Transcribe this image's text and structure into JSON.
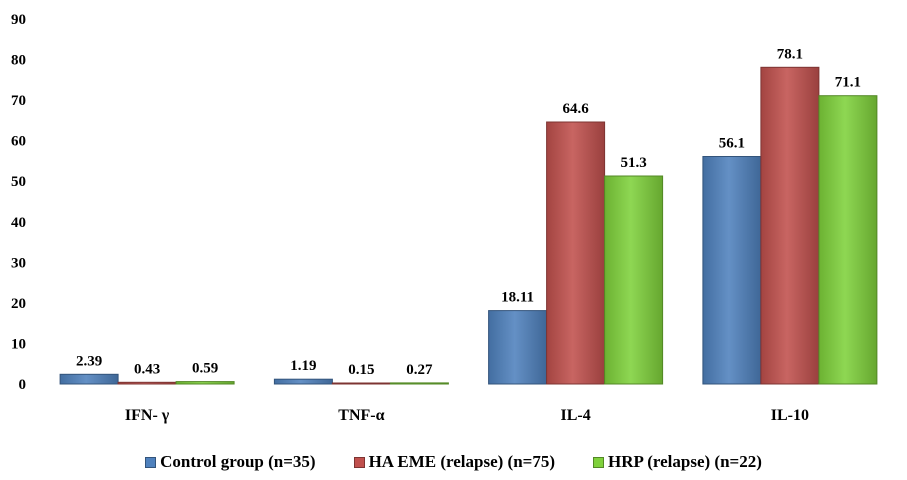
{
  "chart_data": {
    "type": "bar",
    "categories": [
      "IFN- γ",
      "TNF-α",
      "IL-4",
      "IL-10"
    ],
    "series": [
      {
        "name": "Control group (n=35)",
        "color": "#4f81bd",
        "values": [
          2.39,
          1.19,
          18.11,
          56.1
        ],
        "labels": [
          "2.39",
          "1.19",
          "18.11",
          "56.1"
        ]
      },
      {
        "name": "HA EME (relapse) (n=75)",
        "color": "#c0504d",
        "values": [
          0.43,
          0.15,
          64.6,
          78.1
        ],
        "labels": [
          "0.43",
          "0.15",
          "64.6",
          "78.1"
        ]
      },
      {
        "name": "HRP (relapse) (n=22)",
        "color": "#7fd13b",
        "values": [
          0.59,
          0.27,
          51.3,
          71.1
        ],
        "labels": [
          "0.59",
          "0.27",
          "51.3",
          "71.1"
        ]
      }
    ],
    "ylim": [
      0,
      90
    ],
    "yticks": [
      0,
      10,
      20,
      30,
      40,
      50,
      60,
      70,
      80,
      90
    ],
    "xlabel": "",
    "ylabel": "",
    "legend": "bottom",
    "grid": false
  }
}
